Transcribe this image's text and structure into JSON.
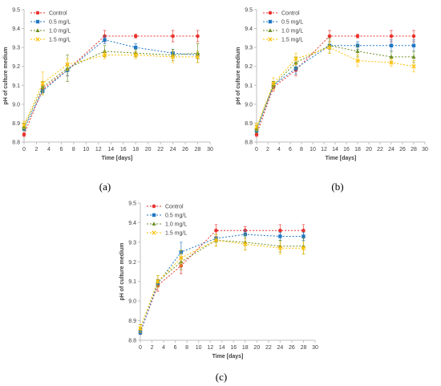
{
  "colors": {
    "Control": "#e8322e",
    "0.5 mg/L": "#1f77c4",
    "1.0 mg/L": "#6b8e23",
    "1.5 mg/L": "#ffc000",
    "axis": "#bfbfbf",
    "text": "#404040"
  },
  "chart_data": [
    {
      "panel": "(a)",
      "type": "line",
      "xlabel": "Time [days]",
      "ylabel": "pH of culture medium",
      "xlim": [
        0,
        30
      ],
      "ylim": [
        8.8,
        9.5
      ],
      "xticks": [
        "0",
        "2",
        "4",
        "6",
        "8",
        "10",
        "12",
        "14",
        "16",
        "18",
        "20",
        "22",
        "24",
        "26",
        "28",
        "30"
      ],
      "yticks": [
        "8.8",
        "8.9",
        "9.0",
        "9.1",
        "9.2",
        "9.3",
        "9.4",
        "9.5"
      ],
      "legend_position": "top-left",
      "grid": false,
      "x": [
        0,
        3,
        7,
        13,
        18,
        24,
        28
      ],
      "series": [
        {
          "name": "Control",
          "marker": "circle",
          "values": [
            8.84,
            9.08,
            9.18,
            9.36,
            9.36,
            9.36,
            9.36
          ],
          "errors": [
            0.01,
            0.02,
            0.03,
            0.03,
            0.01,
            0.03,
            0.03
          ]
        },
        {
          "name": "0.5 mg/L",
          "marker": "square",
          "values": [
            8.87,
            9.07,
            9.18,
            9.34,
            9.3,
            9.27,
            9.26
          ],
          "errors": [
            0.01,
            0.02,
            0.03,
            0.02,
            0.02,
            0.02,
            0.02
          ]
        },
        {
          "name": "1.0 mg/L",
          "marker": "triangle",
          "values": [
            8.88,
            9.09,
            9.19,
            9.28,
            9.27,
            9.26,
            9.27
          ],
          "errors": [
            0.02,
            0.03,
            0.07,
            0.03,
            0.02,
            0.03,
            0.05
          ]
        },
        {
          "name": "1.5 mg/L",
          "marker": "x",
          "values": [
            8.89,
            9.11,
            9.21,
            9.26,
            9.26,
            9.25,
            9.25
          ],
          "errors": [
            0.02,
            0.06,
            0.03,
            0.02,
            0.02,
            0.03,
            0.03
          ]
        }
      ]
    },
    {
      "panel": "(b)",
      "type": "line",
      "xlabel": "Time [days]",
      "ylabel": "pH of culture medium",
      "xlim": [
        0,
        30
      ],
      "ylim": [
        8.8,
        9.5
      ],
      "xticks": [
        "0",
        "2",
        "4",
        "6",
        "8",
        "10",
        "12",
        "14",
        "16",
        "18",
        "20",
        "22",
        "24",
        "26",
        "28",
        "30"
      ],
      "yticks": [
        "8.8",
        "8.9",
        "9.0",
        "9.1",
        "9.2",
        "9.3",
        "9.4",
        "9.5"
      ],
      "legend_position": "top-left",
      "grid": false,
      "x": [
        0,
        3,
        7,
        13,
        18,
        24,
        28
      ],
      "series": [
        {
          "name": "Control",
          "marker": "circle",
          "values": [
            8.84,
            9.09,
            9.18,
            9.36,
            9.36,
            9.36,
            9.36
          ],
          "errors": [
            0.01,
            0.02,
            0.03,
            0.03,
            0.01,
            0.03,
            0.03
          ]
        },
        {
          "name": "0.5 mg/L",
          "marker": "square",
          "values": [
            8.86,
            9.1,
            9.19,
            9.31,
            9.31,
            9.31,
            9.31
          ],
          "errors": [
            0.01,
            0.02,
            0.03,
            0.02,
            0.02,
            0.03,
            0.03
          ]
        },
        {
          "name": "1.0 mg/L",
          "marker": "triangle",
          "values": [
            8.87,
            9.1,
            9.22,
            9.31,
            9.28,
            9.25,
            9.25
          ],
          "errors": [
            0.02,
            0.02,
            0.03,
            0.04,
            0.03,
            0.03,
            0.03
          ]
        },
        {
          "name": "1.5 mg/L",
          "marker": "x",
          "values": [
            8.88,
            9.11,
            9.24,
            9.3,
            9.23,
            9.22,
            9.2
          ],
          "errors": [
            0.02,
            0.03,
            0.03,
            0.03,
            0.03,
            0.02,
            0.03
          ]
        }
      ]
    },
    {
      "panel": "(c)",
      "type": "line",
      "xlabel": "Time [days]",
      "ylabel": "pH of culture medium",
      "xlim": [
        0,
        30
      ],
      "ylim": [
        8.8,
        9.5
      ],
      "xticks": [
        "0",
        "2",
        "4",
        "6",
        "8",
        "10",
        "12",
        "14",
        "16",
        "18",
        "20",
        "22",
        "24",
        "26",
        "28",
        "30"
      ],
      "yticks": [
        "8.8",
        "8.9",
        "9.0",
        "9.1",
        "9.2",
        "9.3",
        "9.4",
        "9.5"
      ],
      "legend_position": "top-left",
      "grid": false,
      "x": [
        0,
        3,
        7,
        13,
        18,
        24,
        28
      ],
      "series": [
        {
          "name": "Control",
          "marker": "circle",
          "values": [
            8.84,
            9.08,
            9.18,
            9.36,
            9.36,
            9.36,
            9.36
          ],
          "errors": [
            0.01,
            0.03,
            0.04,
            0.03,
            0.02,
            0.03,
            0.03
          ]
        },
        {
          "name": "0.5 mg/L",
          "marker": "square",
          "values": [
            8.84,
            9.09,
            9.25,
            9.32,
            9.34,
            9.33,
            9.33
          ],
          "errors": [
            0.01,
            0.02,
            0.05,
            0.02,
            0.02,
            0.02,
            0.02
          ]
        },
        {
          "name": "1.0 mg/L",
          "marker": "triangle",
          "values": [
            8.86,
            9.1,
            9.2,
            9.31,
            9.3,
            9.28,
            9.28
          ],
          "errors": [
            0.02,
            0.03,
            0.04,
            0.03,
            0.04,
            0.03,
            0.04
          ]
        },
        {
          "name": "1.5 mg/L",
          "marker": "x",
          "values": [
            8.86,
            9.1,
            9.22,
            9.31,
            9.29,
            9.27,
            9.27
          ],
          "errors": [
            0.02,
            0.03,
            0.04,
            0.03,
            0.03,
            0.03,
            0.03
          ]
        }
      ]
    }
  ]
}
